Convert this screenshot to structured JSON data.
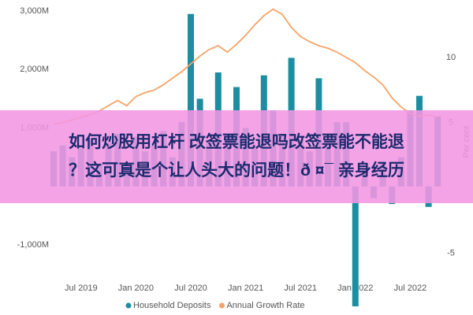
{
  "chart_data": {
    "type": "bar_line",
    "categories": [
      null,
      null,
      null,
      "Jul 2019",
      null,
      null,
      null,
      null,
      null,
      "Jan 2020",
      null,
      null,
      null,
      null,
      null,
      "Jul 2020",
      null,
      null,
      null,
      null,
      null,
      "Jan 2021",
      null,
      null,
      null,
      null,
      null,
      "Jul 2021",
      null,
      null,
      null,
      null,
      null,
      "Jan 2022",
      null,
      null,
      null,
      null,
      null,
      "Jul 2022",
      null,
      null,
      null
    ],
    "series": [
      {
        "name": "Household Deposits",
        "color": "#1b8ea1",
        "axis": "y",
        "values": [
          600,
          700,
          500,
          650,
          800,
          400,
          750,
          900,
          300,
          850,
          600,
          700,
          950,
          500,
          1100,
          2950,
          1500,
          800,
          1950,
          900,
          1700,
          1000,
          700,
          1900,
          1300,
          900,
          2200,
          800,
          600,
          1850,
          700,
          1100,
          1100,
          -2050,
          300,
          -200,
          400,
          -300,
          500,
          1300,
          1550,
          -350,
          1200
        ]
      },
      {
        "name": "Annual Growth Rate",
        "color": "#f5a468",
        "axis": "y2",
        "values": [
          4.9,
          5.0,
          5.2,
          5.4,
          5.6,
          5.9,
          6.3,
          6.7,
          6.3,
          7.0,
          7.3,
          7.5,
          7.9,
          8.4,
          8.9,
          9.5,
          10.1,
          10.6,
          10.9,
          10.4,
          11.0,
          11.7,
          12.5,
          13.2,
          13.7,
          13.3,
          12.3,
          11.6,
          11.2,
          10.9,
          10.7,
          10.4,
          10.0,
          9.6,
          9.0,
          8.5,
          7.9,
          6.9,
          6.2,
          5.7,
          5.5,
          5.6,
          5.4
        ]
      }
    ],
    "ylim": [
      -2100,
      3100
    ],
    "yticks": [
      {
        "value": 3000,
        "label": "3,000M"
      },
      {
        "value": 2000,
        "label": "2,000M"
      },
      {
        "value": 1000,
        "label": "1,000M"
      },
      {
        "value": -1000,
        "label": "-1,000M"
      }
    ],
    "y2lim": [
      -9.3,
      14
    ],
    "y2ticks": [
      10,
      5,
      -5
    ],
    "y2label": "Per cent",
    "grid": false,
    "legend": "bottom"
  },
  "banner": {
    "lines": [
      "如何炒股用杠杆 改签票能退吗改签票能不能退",
      "？这可真是个让人头大的问题！ð ¤¯ 亲身经历"
    ]
  }
}
